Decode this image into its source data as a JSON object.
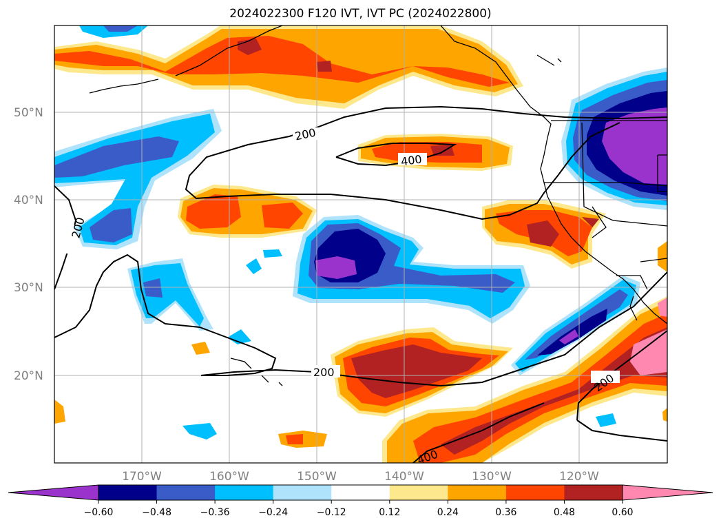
{
  "title": "2024022300 F120 IVT, IVT PC (2024022800)",
  "lat_labels": [
    "50°N",
    "40°N",
    "30°N",
    "20°N"
  ],
  "lon_labels": [
    "170°W",
    "160°W",
    "150°W",
    "140°W",
    "130°W",
    "120°W"
  ],
  "contour_labels": [
    "200",
    "400",
    "200",
    "200",
    "200",
    "400"
  ],
  "colorbar": {
    "ticks": [
      "−0.60",
      "−0.48",
      "−0.36",
      "−0.24",
      "−0.12",
      "0.12",
      "0.24",
      "0.36",
      "0.48",
      "0.60"
    ],
    "colors": [
      "#9a33cc",
      "#00008b",
      "#3a5cc8",
      "#00bfff",
      "#aee3fb",
      "#ffffff",
      "#fde88d",
      "#ffa500",
      "#ff4500",
      "#b22222",
      "#ff88b0"
    ]
  },
  "colors": {
    "neg_strong": "#9a33cc",
    "neg_dark": "#00008b",
    "neg_mid": "#3a5cc8",
    "neg_light": "#00bfff",
    "neg_pale": "#aee3fb",
    "pos_pale": "#fde88d",
    "pos_light": "#ffa500",
    "pos_mid": "#ff4500",
    "pos_dark": "#b22222",
    "pos_strong": "#ff88b0"
  }
}
